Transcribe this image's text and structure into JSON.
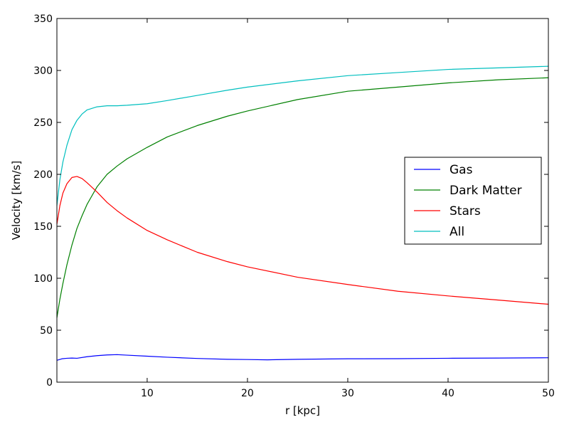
{
  "chart_data": {
    "type": "line",
    "title": "",
    "xlabel": "r [kpc]",
    "ylabel": "Velocity [km/s]",
    "xlim": [
      1,
      50
    ],
    "ylim": [
      0,
      350
    ],
    "xticks": [
      10,
      20,
      30,
      40,
      50
    ],
    "yticks": [
      0,
      50,
      100,
      150,
      200,
      250,
      300,
      350
    ],
    "grid": false,
    "legend_position": "center-right",
    "series": [
      {
        "name": "Gas",
        "color": "#0000ff",
        "x": [
          1,
          1.5,
          2,
          2.5,
          3,
          4,
          5,
          6,
          7,
          8,
          10,
          12,
          15,
          18,
          20,
          22,
          25,
          30,
          35,
          40,
          45,
          50
        ],
        "y": [
          21,
          22.5,
          23,
          23.2,
          23,
          24.5,
          25.5,
          26.2,
          26.5,
          26,
          25,
          24,
          22.8,
          22,
          21.8,
          21.5,
          22,
          22.5,
          22.6,
          23,
          23.2,
          23.5
        ]
      },
      {
        "name": "Dark Matter",
        "color": "#008000",
        "x": [
          1,
          1.3,
          1.6,
          2,
          2.5,
          3,
          3.5,
          4,
          5,
          6,
          7,
          8,
          10,
          12,
          15,
          18,
          20,
          25,
          30,
          35,
          40,
          45,
          50
        ],
        "y": [
          62,
          80,
          95,
          113,
          132,
          148,
          160,
          171,
          188,
          200,
          208,
          215,
          226,
          236,
          247,
          256,
          261,
          272,
          280,
          284,
          288,
          291,
          293
        ]
      },
      {
        "name": "Stars",
        "color": "#ff0000",
        "x": [
          1,
          1.3,
          1.6,
          2,
          2.5,
          3,
          3.5,
          4,
          5,
          6,
          7,
          8,
          10,
          12,
          15,
          18,
          20,
          25,
          30,
          35,
          40,
          45,
          50
        ],
        "y": [
          152,
          170,
          182,
          191,
          197,
          198,
          196,
          192,
          183,
          173,
          165,
          158,
          146,
          137,
          125,
          116,
          111,
          101,
          94,
          87.5,
          83,
          79,
          75
        ]
      },
      {
        "name": "All",
        "color": "#00bfbf",
        "x": [
          1,
          1.3,
          1.6,
          2,
          2.5,
          3,
          3.5,
          4,
          5,
          6,
          7,
          8,
          10,
          12,
          15,
          18,
          20,
          25,
          30,
          35,
          40,
          45,
          50
        ],
        "y": [
          170,
          195,
          212,
          228,
          243,
          252,
          258,
          262,
          265,
          266,
          266,
          266.5,
          268,
          271,
          276,
          281,
          284,
          290,
          295,
          298,
          301,
          302.5,
          304
        ]
      }
    ]
  }
}
